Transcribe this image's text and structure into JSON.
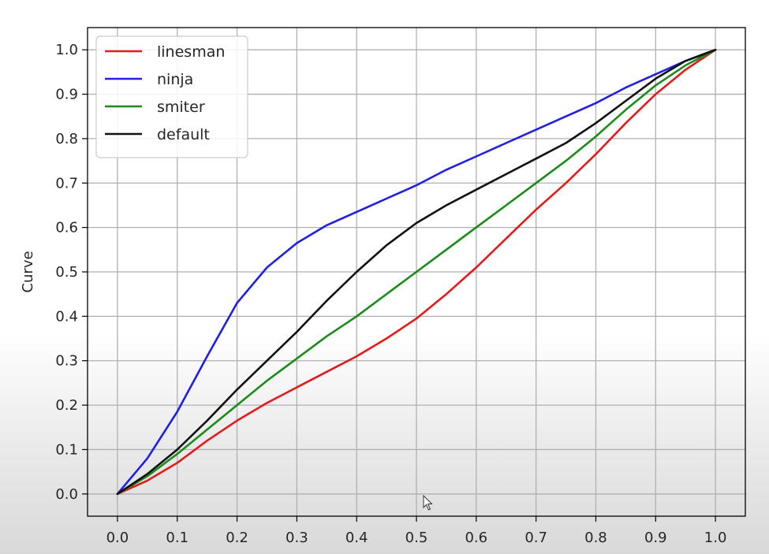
{
  "chart_data": {
    "type": "line",
    "title": "",
    "xlabel": "",
    "ylabel": "Curve",
    "xlim": [
      -0.05,
      1.05
    ],
    "ylim": [
      -0.05,
      1.05
    ],
    "xticks": [
      "0.0",
      "0.1",
      "0.2",
      "0.3",
      "0.4",
      "0.5",
      "0.6",
      "0.7",
      "0.8",
      "0.9",
      "1.0"
    ],
    "yticks": [
      "0.0",
      "0.1",
      "0.2",
      "0.3",
      "0.4",
      "0.5",
      "0.6",
      "0.7",
      "0.8",
      "0.9",
      "1.0"
    ],
    "grid": true,
    "legend_position": "upper left",
    "series": [
      {
        "name": "linesman",
        "color": "#e41a1c",
        "x": [
          0.0,
          0.05,
          0.1,
          0.15,
          0.2,
          0.25,
          0.3,
          0.35,
          0.4,
          0.45,
          0.5,
          0.55,
          0.6,
          0.65,
          0.7,
          0.75,
          0.8,
          0.85,
          0.9,
          0.95,
          1.0
        ],
        "y": [
          0.0,
          0.03,
          0.07,
          0.12,
          0.165,
          0.205,
          0.24,
          0.275,
          0.31,
          0.35,
          0.395,
          0.45,
          0.51,
          0.575,
          0.64,
          0.7,
          0.765,
          0.835,
          0.9,
          0.955,
          1.0
        ]
      },
      {
        "name": "ninja",
        "color": "#1f1fe6",
        "x": [
          0.0,
          0.05,
          0.1,
          0.15,
          0.2,
          0.25,
          0.3,
          0.35,
          0.4,
          0.45,
          0.5,
          0.55,
          0.6,
          0.65,
          0.7,
          0.75,
          0.8,
          0.85,
          0.9,
          0.95,
          1.0
        ],
        "y": [
          0.0,
          0.08,
          0.185,
          0.31,
          0.43,
          0.51,
          0.565,
          0.605,
          0.635,
          0.665,
          0.695,
          0.73,
          0.76,
          0.79,
          0.82,
          0.85,
          0.88,
          0.915,
          0.945,
          0.975,
          1.0
        ]
      },
      {
        "name": "smiter",
        "color": "#1a8c1a",
        "x": [
          0.0,
          0.05,
          0.1,
          0.15,
          0.2,
          0.25,
          0.3,
          0.35,
          0.4,
          0.45,
          0.5,
          0.55,
          0.6,
          0.65,
          0.7,
          0.75,
          0.8,
          0.85,
          0.9,
          0.95,
          1.0
        ],
        "y": [
          0.0,
          0.04,
          0.09,
          0.145,
          0.2,
          0.255,
          0.305,
          0.355,
          0.4,
          0.45,
          0.5,
          0.55,
          0.6,
          0.65,
          0.7,
          0.75,
          0.805,
          0.865,
          0.92,
          0.965,
          1.0
        ]
      },
      {
        "name": "default",
        "color": "#111111",
        "x": [
          0.0,
          0.05,
          0.1,
          0.15,
          0.2,
          0.25,
          0.3,
          0.35,
          0.4,
          0.45,
          0.5,
          0.55,
          0.6,
          0.65,
          0.7,
          0.75,
          0.8,
          0.85,
          0.9,
          0.95,
          1.0
        ],
        "y": [
          0.0,
          0.045,
          0.1,
          0.165,
          0.235,
          0.3,
          0.365,
          0.435,
          0.5,
          0.56,
          0.61,
          0.65,
          0.685,
          0.72,
          0.755,
          0.79,
          0.835,
          0.885,
          0.935,
          0.975,
          1.0
        ]
      }
    ]
  },
  "icons": {
    "cursor": "mouse-pointer-icon"
  }
}
